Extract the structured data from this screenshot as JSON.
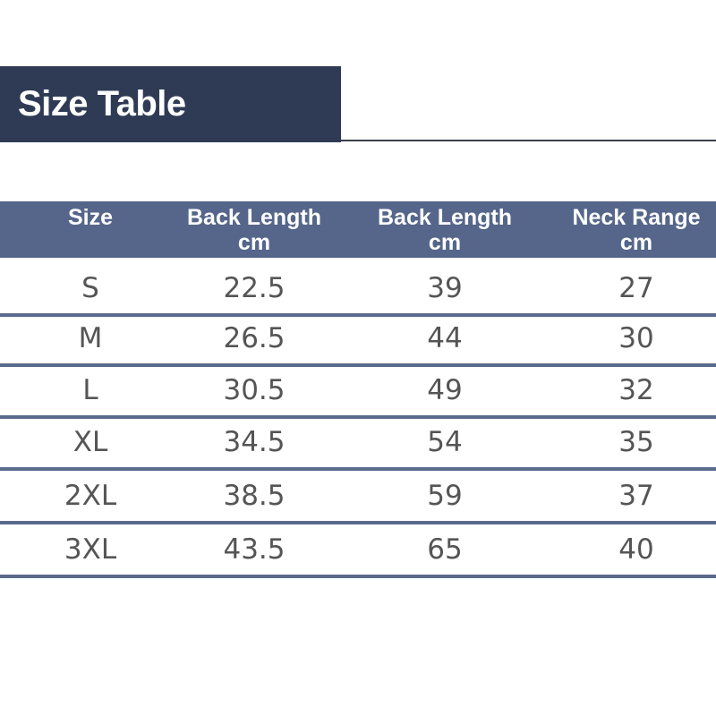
{
  "title": "Size Table",
  "table": {
    "headers": [
      {
        "line1": "Size",
        "line2": ""
      },
      {
        "line1": "Back Length",
        "line2": "cm"
      },
      {
        "line1": "Back Length",
        "line2": "cm"
      },
      {
        "line1": "Neck Range",
        "line2": "cm"
      }
    ],
    "rows": [
      [
        "S",
        "22.5",
        "39",
        "27"
      ],
      [
        "M",
        "26.5",
        "44",
        "30"
      ],
      [
        "L",
        "30.5",
        "49",
        "32"
      ],
      [
        "XL",
        "34.5",
        "54",
        "35"
      ],
      [
        "2XL",
        "38.5",
        "59",
        "37"
      ],
      [
        "3XL",
        "43.5",
        "65",
        "40"
      ]
    ]
  },
  "colors": {
    "title_bg": "#2f3b55",
    "header_bg": "#55668a",
    "separator": "#5a6a8c"
  }
}
